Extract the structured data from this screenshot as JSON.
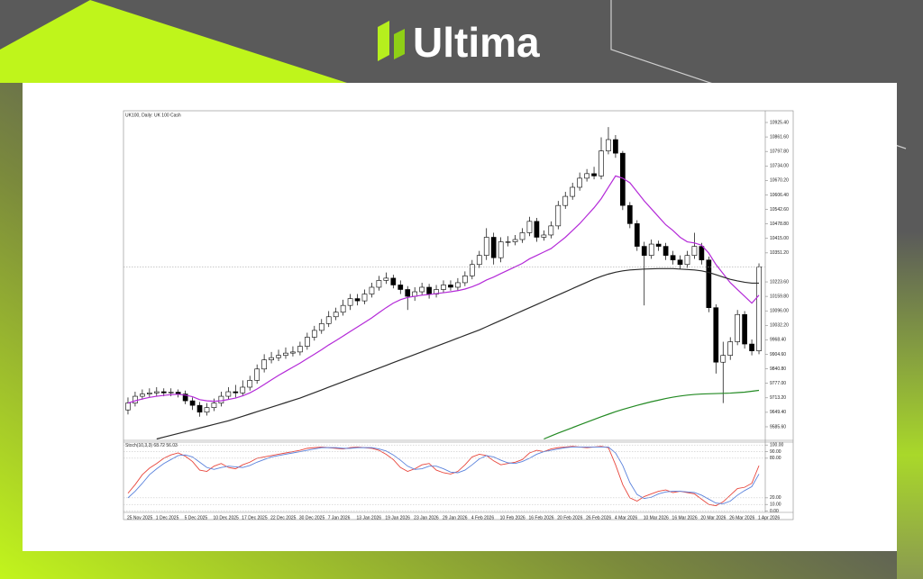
{
  "header": {
    "brand": "Ultima"
  },
  "chart_data": [
    {
      "type": "candlestick",
      "title": "UK100, Daily: UK 100 Cash",
      "categories": [
        "25 Nov 2025",
        null,
        null,
        null,
        "1 Dec 2025",
        null,
        null,
        null,
        "5 Dec 2025",
        null,
        null,
        null,
        "10 Dec 2025",
        null,
        null,
        null,
        "17 Dec 2025",
        null,
        null,
        null,
        "22 Dec 2025",
        null,
        null,
        null,
        "30 Dec 2025",
        null,
        null,
        null,
        "7 Jan 2026",
        null,
        null,
        null,
        "13 Jan 2026",
        null,
        null,
        null,
        "19 Jan 2026",
        null,
        null,
        null,
        "23 Jan 2026",
        null,
        null,
        null,
        "29 Jan 2026",
        null,
        null,
        null,
        "4 Feb 2026",
        null,
        null,
        null,
        "10 Feb 2026",
        null,
        null,
        null,
        "16 Feb 2026",
        null,
        null,
        null,
        "20 Feb 2026",
        null,
        null,
        null,
        "26 Feb 2026",
        null,
        null,
        null,
        "4 Mar 2026",
        null,
        null,
        null,
        "10 Mar 2026",
        null,
        null,
        null,
        "16 Mar 2026",
        null,
        null,
        null,
        "20 Mar 2026",
        null,
        null,
        null,
        "26 Mar 2026",
        null,
        null,
        null,
        "1 Apr 2026"
      ],
      "open": [
        9660,
        9690,
        9720,
        9730,
        9735,
        9740,
        9735,
        9738,
        9730,
        9700,
        9680,
        9650,
        9670,
        9690,
        9720,
        9740,
        9735,
        9760,
        9790,
        9840,
        9880,
        9890,
        9900,
        9910,
        9915,
        9940,
        9980,
        10010,
        10040,
        10070,
        10090,
        10120,
        10150,
        10140,
        10170,
        10200,
        10230,
        10240,
        10210,
        10190,
        10160,
        10180,
        10200,
        10170,
        10190,
        10210,
        10200,
        10220,
        10250,
        10300,
        10340,
        10420,
        10330,
        10400,
        10400,
        10410,
        10440,
        10490,
        10420,
        10430,
        10470,
        10560,
        10600,
        10640,
        10680,
        10700,
        10690,
        10800,
        10850,
        10790,
        10560,
        10480,
        10380,
        10340,
        10390,
        10380,
        10340,
        10320,
        10300,
        10340,
        10380,
        10320,
        10110,
        9870,
        9900,
        9960,
        10080,
        9950,
        9920
      ],
      "high": [
        9715,
        9740,
        9750,
        9755,
        9760,
        9755,
        9755,
        9750,
        9745,
        9715,
        9695,
        9690,
        9710,
        9740,
        9760,
        9770,
        9790,
        9810,
        9860,
        9905,
        9915,
        9925,
        9935,
        9940,
        9960,
        10000,
        10030,
        10060,
        10095,
        10110,
        10145,
        10170,
        10170,
        10190,
        10220,
        10250,
        10265,
        10255,
        10230,
        10205,
        10200,
        10220,
        10215,
        10210,
        10230,
        10230,
        10240,
        10270,
        10320,
        10360,
        10460,
        10440,
        10420,
        10425,
        10430,
        10460,
        10510,
        10505,
        10450,
        10490,
        10580,
        10620,
        10660,
        10705,
        10720,
        10730,
        10860,
        10905,
        10870,
        10800,
        10575,
        10495,
        10400,
        10410,
        10405,
        10395,
        10360,
        10340,
        10360,
        10440,
        10395,
        10335,
        10125,
        9960,
        9980,
        10100,
        10095,
        9970,
        10305
      ],
      "low": [
        9640,
        9675,
        9705,
        9715,
        9720,
        9720,
        9720,
        9715,
        9685,
        9660,
        9630,
        9635,
        9655,
        9675,
        9705,
        9715,
        9720,
        9745,
        9775,
        9825,
        9865,
        9875,
        9885,
        9895,
        9900,
        9925,
        9965,
        9995,
        10025,
        10055,
        10075,
        10100,
        10120,
        10125,
        10155,
        10185,
        10215,
        10195,
        10170,
        10100,
        10140,
        10165,
        10150,
        10155,
        10175,
        10185,
        10185,
        10205,
        10235,
        10285,
        10320,
        10300,
        10310,
        10380,
        10385,
        10395,
        10425,
        10400,
        10405,
        10415,
        10455,
        10545,
        10585,
        10625,
        10665,
        10675,
        10675,
        10785,
        10770,
        10540,
        10460,
        10360,
        10120,
        10325,
        10360,
        10320,
        10300,
        10280,
        10285,
        10325,
        10300,
        10090,
        9820,
        9690,
        9880,
        9945,
        9930,
        9900,
        9905
      ],
      "close": [
        9690,
        9720,
        9730,
        9735,
        9740,
        9735,
        9738,
        9730,
        9700,
        9680,
        9650,
        9670,
        9690,
        9720,
        9740,
        9735,
        9760,
        9790,
        9840,
        9880,
        9890,
        9900,
        9910,
        9915,
        9940,
        9980,
        10010,
        10040,
        10070,
        10090,
        10120,
        10150,
        10140,
        10170,
        10200,
        10230,
        10240,
        10210,
        10190,
        10160,
        10180,
        10200,
        10170,
        10190,
        10210,
        10200,
        10220,
        10250,
        10300,
        10340,
        10420,
        10330,
        10400,
        10400,
        10410,
        10440,
        10490,
        10420,
        10430,
        10470,
        10560,
        10600,
        10640,
        10680,
        10700,
        10690,
        10800,
        10850,
        10790,
        10560,
        10480,
        10380,
        10340,
        10390,
        10380,
        10340,
        10320,
        10300,
        10340,
        10380,
        10320,
        10110,
        9870,
        9900,
        9960,
        10080,
        9950,
        9920,
        10290
      ],
      "up_color": "#ffffff",
      "down_color": "#000000",
      "current_price_line": true,
      "series": [
        {
          "color": "#b42ad8",
          "values": [
            9690,
            9700,
            9708,
            9715,
            9720,
            9724,
            9727,
            9729,
            9725,
            9718,
            9705,
            9700,
            9698,
            9700,
            9706,
            9712,
            9722,
            9735,
            9752,
            9772,
            9792,
            9812,
            9830,
            9848,
            9866,
            9886,
            9905,
            9925,
            9946,
            9965,
            9985,
            10005,
            10025,
            10045,
            10065,
            10088,
            10110,
            10130,
            10145,
            10155,
            10160,
            10165,
            10168,
            10172,
            10176,
            10180,
            10185,
            10192,
            10202,
            10215,
            10232,
            10245,
            10260,
            10275,
            10290,
            10305,
            10325,
            10340,
            10355,
            10370,
            10395,
            10420,
            10450,
            10480,
            10515,
            10550,
            10590,
            10640,
            10690,
            10680,
            10660,
            10620,
            10580,
            10545,
            10510,
            10475,
            10450,
            10420,
            10400,
            10395,
            10385,
            10350,
            10300,
            10260,
            10220,
            10190,
            10160,
            10130,
            10165
          ]
        },
        {
          "color": "#2a2a2a",
          "values": [
            null,
            null,
            null,
            null,
            9532,
            9540,
            9548,
            9556,
            9564,
            9572,
            9580,
            9588,
            9596,
            9604,
            9612,
            9622,
            9632,
            9642,
            9652,
            9662,
            9672,
            9682,
            9692,
            9702,
            9712,
            9724,
            9736,
            9748,
            9760,
            9772,
            9784,
            9796,
            9808,
            9820,
            9832,
            9844,
            9856,
            9868,
            9880,
            9892,
            9904,
            9916,
            9928,
            9940,
            9952,
            9964,
            9976,
            9988,
            10000,
            10012,
            10026,
            10040,
            10054,
            10068,
            10082,
            10096,
            10110,
            10124,
            10138,
            10152,
            10166,
            10180,
            10194,
            10208,
            10222,
            10236,
            10248,
            10258,
            10266,
            10272,
            10276,
            10278,
            10280,
            10281,
            10282,
            10282,
            10282,
            10280,
            10278,
            10276,
            10272,
            10265,
            10255,
            10245,
            10235,
            10228,
            10222,
            10218,
            10218
          ]
        },
        {
          "color": "#238a23",
          "values": [
            null,
            null,
            null,
            null,
            null,
            null,
            null,
            null,
            null,
            null,
            null,
            null,
            null,
            null,
            null,
            null,
            null,
            null,
            null,
            null,
            null,
            null,
            null,
            null,
            null,
            null,
            null,
            null,
            null,
            null,
            null,
            null,
            null,
            null,
            null,
            null,
            null,
            null,
            null,
            null,
            null,
            null,
            null,
            null,
            null,
            null,
            null,
            null,
            null,
            null,
            null,
            null,
            null,
            null,
            null,
            null,
            null,
            null,
            9532,
            9545,
            9558,
            9570,
            9582,
            9594,
            9606,
            9618,
            9630,
            9641,
            9652,
            9662,
            9671,
            9680,
            9688,
            9696,
            9703,
            9710,
            9716,
            9721,
            9725,
            9728,
            9730,
            9731,
            9732,
            9733,
            9734,
            9736,
            9738,
            9742,
            9746
          ]
        }
      ],
      "ylim": [
        9530,
        10969
      ],
      "yticks": [
        {
          "value": 10925.4,
          "label": "10925.40"
        },
        {
          "value": 10861.6,
          "label": "10861.60"
        },
        {
          "value": 10797.8,
          "label": "10797.80"
        },
        {
          "value": 10734,
          "label": "10734.00"
        },
        {
          "value": 10670.2,
          "label": "10670.20"
        },
        {
          "value": 10606.4,
          "label": "10606.40"
        },
        {
          "value": 10542.6,
          "label": "10542.60"
        },
        {
          "value": 10478.8,
          "label": "10478.80"
        },
        {
          "value": 10415,
          "label": "10415.00"
        },
        {
          "value": 10351.2,
          "label": "10351.20"
        },
        {
          "value": 10223.6,
          "label": "10223.60"
        },
        {
          "value": 10159.8,
          "label": "10159.80"
        },
        {
          "value": 10096,
          "label": "10096.00"
        },
        {
          "value": 10032.2,
          "label": "10032.20"
        },
        {
          "value": 9968.4,
          "label": "9968.40"
        },
        {
          "value": 9904.6,
          "label": "9904.60"
        },
        {
          "value": 9840.8,
          "label": "9840.80"
        },
        {
          "value": 9777,
          "label": "9777.00"
        },
        {
          "value": 9713.2,
          "label": "9713.20"
        },
        {
          "value": 9649.4,
          "label": "9649.40"
        },
        {
          "value": 9585.6,
          "label": "9585.60"
        }
      ]
    },
    {
      "type": "line",
      "title": "Stoch(10,3,3)",
      "series": [
        {
          "color": "#e8463c",
          "values": [
            27,
            40,
            55,
            65,
            72,
            80,
            85,
            88,
            83,
            75,
            62,
            60,
            68,
            72,
            66,
            64,
            70,
            74,
            80,
            82,
            84,
            86,
            88,
            90,
            92,
            95,
            96,
            97,
            96,
            95,
            94,
            96,
            97,
            96,
            95,
            92,
            86,
            78,
            66,
            60,
            64,
            70,
            72,
            62,
            58,
            56,
            60,
            70,
            82,
            86,
            84,
            76,
            70,
            72,
            74,
            78,
            88,
            92,
            90,
            94,
            96,
            97,
            98,
            97,
            96,
            97,
            98,
            96,
            70,
            40,
            20,
            15,
            22,
            26,
            30,
            32,
            28,
            30,
            28,
            26,
            18,
            10,
            8,
            14,
            24,
            34,
            36,
            42,
            68.72
          ]
        },
        {
          "color": "#5a82dc",
          "values": [
            20,
            30,
            42,
            55,
            64,
            72,
            78,
            84,
            85,
            82,
            74,
            66,
            63,
            66,
            68,
            67,
            66,
            69,
            74,
            78,
            82,
            84,
            86,
            88,
            90,
            92,
            94,
            96,
            96,
            96,
            95,
            95,
            96,
            96,
            96,
            94,
            91,
            85,
            77,
            68,
            63,
            64,
            68,
            68,
            64,
            59,
            58,
            62,
            70,
            79,
            84,
            82,
            77,
            73,
            72,
            75,
            80,
            86,
            90,
            92,
            94,
            96,
            97,
            97,
            97,
            97,
            97,
            97,
            88,
            69,
            43,
            25,
            19,
            21,
            26,
            29,
            30,
            30,
            29,
            28,
            24,
            18,
            12,
            11,
            15,
            24,
            31,
            37,
            56.03
          ]
        }
      ],
      "ylim": [
        -2,
        103
      ],
      "yticks": [
        {
          "value": 100,
          "label": "100.00"
        },
        {
          "value": 90,
          "label": "90.00"
        },
        {
          "value": 80,
          "label": "80.00"
        },
        {
          "value": 20,
          "label": "20.00"
        },
        {
          "value": 10,
          "label": "10.00"
        },
        {
          "value": 0,
          "label": "0.00"
        }
      ]
    }
  ]
}
